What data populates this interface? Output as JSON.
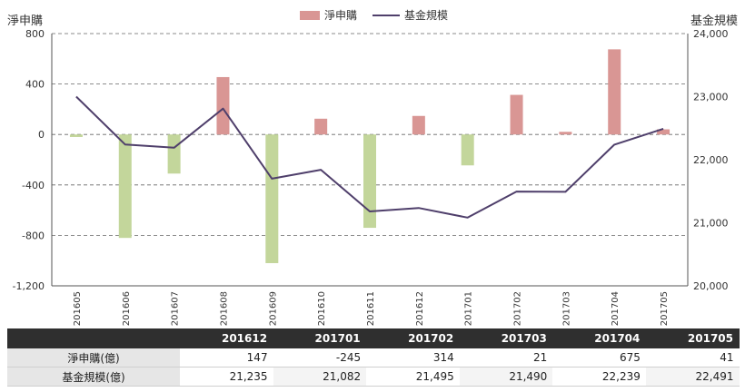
{
  "chart_data": {
    "type": "bar+line",
    "categories": [
      "201605",
      "201606",
      "201607",
      "201608",
      "201609",
      "201610",
      "201611",
      "201612",
      "201701",
      "201702",
      "201703",
      "201704",
      "201705"
    ],
    "series": [
      {
        "name": "淨申購",
        "type": "bar",
        "axis": "left",
        "values": [
          -20,
          -820,
          -310,
          455,
          -1020,
          125,
          -740,
          147,
          -245,
          314,
          21,
          675,
          41
        ]
      },
      {
        "name": "基金規模",
        "type": "line",
        "axis": "right",
        "values": [
          23000,
          22240,
          22190,
          22810,
          21700,
          21840,
          21180,
          21235,
          21082,
          21495,
          21490,
          22239,
          22491
        ]
      }
    ],
    "ylabel_left": "淨申購",
    "ylabel_right": "基金規模",
    "ylim_left": [
      -1200,
      800
    ],
    "ylim_right": [
      20000,
      24000
    ],
    "yticks_left": [
      "800",
      "400",
      "0",
      "-400",
      "-800",
      "-1,200"
    ],
    "yticks_right": [
      "24,000",
      "23,000",
      "22,000",
      "21,000",
      "20,000"
    ],
    "legend_position": "top-center",
    "grid": "dashed horizontal",
    "colors": {
      "bar_positive": "#d99694",
      "bar_negative": "#c3d69b",
      "line": "#4f3f6b"
    }
  },
  "table": {
    "headers": [
      "201612",
      "201701",
      "201702",
      "201703",
      "201704",
      "201705"
    ],
    "rows": [
      {
        "label": "淨申購(億)",
        "values": [
          "147",
          "-245",
          "314",
          "21",
          "675",
          "41"
        ]
      },
      {
        "label": "基金規模(億)",
        "values": [
          "21,235",
          "21,082",
          "21,495",
          "21,490",
          "22,239",
          "22,491"
        ]
      }
    ]
  }
}
